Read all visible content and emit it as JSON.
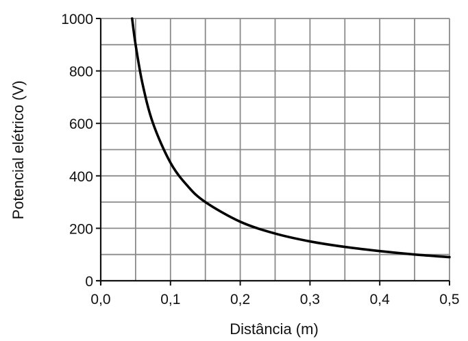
{
  "chart_data": {
    "type": "line",
    "xlabel": "Distância (m)",
    "ylabel": "Potencial elétrico (V)",
    "xlim": [
      0,
      0.5
    ],
    "ylim": [
      0,
      1000
    ],
    "x_ticks": [
      0,
      0.1,
      0.2,
      0.3,
      0.4,
      0.5
    ],
    "x_tick_labels": [
      "0,0",
      "0,1",
      "0,2",
      "0,3",
      "0,4",
      "0,5"
    ],
    "y_ticks": [
      0,
      200,
      400,
      600,
      800,
      1000
    ],
    "y_tick_labels": [
      "0",
      "200",
      "400",
      "600",
      "800",
      "1000"
    ],
    "x_grid_step": 0.05,
    "y_grid_step": 100,
    "grid": true,
    "colors": {
      "grid": "#8a8a8a",
      "axis": "#111111",
      "curve": "#000000"
    },
    "series": [
      {
        "x": [
          0.045,
          0.05,
          0.06,
          0.075,
          0.1,
          0.125,
          0.15,
          0.2,
          0.25,
          0.3,
          0.35,
          0.4,
          0.45,
          0.5
        ],
        "y": [
          1000,
          900,
          750,
          600,
          450,
          360,
          300,
          225,
          180,
          150,
          129,
          113,
          100,
          90
        ]
      }
    ]
  }
}
